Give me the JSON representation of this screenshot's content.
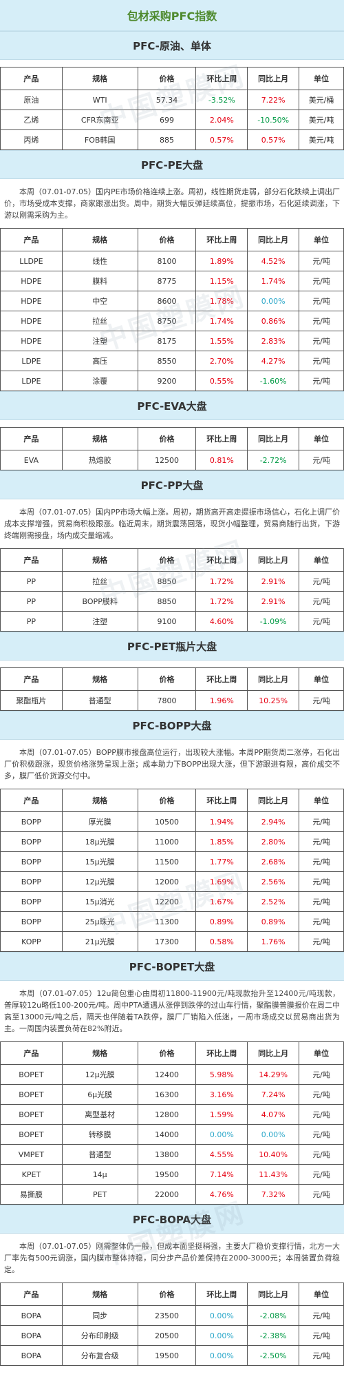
{
  "page": {
    "title": "包材采购PFC指数",
    "watermark": "中国塑膜网",
    "colors": {
      "header_bg": "#d6eef8",
      "title_green": "#4f8a2e",
      "up": "#e60012",
      "down": "#009a44",
      "flat": "#2aa7c9"
    },
    "headers": [
      "产品",
      "规格",
      "价格",
      "环比上周",
      "同比上月",
      "单位"
    ]
  },
  "sections": [
    {
      "title": "PFC-原油、单体",
      "paragraph": "",
      "rows": [
        {
          "product": "原油",
          "spec": "WTI",
          "price": "57.34",
          "wow": "-3.52%",
          "mom": "7.22%",
          "unit": "美元/桶"
        },
        {
          "product": "乙烯",
          "spec": "CFR东南亚",
          "price": "699",
          "wow": "2.04%",
          "mom": "-10.50%",
          "unit": "美元/吨"
        },
        {
          "product": "丙烯",
          "spec": "FOB韩国",
          "price": "885",
          "wow": "0.57%",
          "mom": "0.57%",
          "unit": "美元/吨"
        }
      ]
    },
    {
      "title": "PFC-PE大盘",
      "paragraph": "本周（07.01-07.05）国内PE市场价格连续上涨。周初，线性期货走弱，部分石化跌续上调出厂价，市场受成本支撑，商家跟涨出货。周中，期货大幅反弹延续高位，提振市场，石化延续调涨，下游以刚需采购为主。",
      "rows": [
        {
          "product": "LLDPE",
          "spec": "线性",
          "price": "8100",
          "wow": "1.89%",
          "mom": "4.52%",
          "unit": "元/吨"
        },
        {
          "product": "HDPE",
          "spec": "膜料",
          "price": "8775",
          "wow": "1.15%",
          "mom": "1.74%",
          "unit": "元/吨"
        },
        {
          "product": "HDPE",
          "spec": "中空",
          "price": "8600",
          "wow": "1.78%",
          "mom": "0.00%",
          "unit": "元/吨"
        },
        {
          "product": "HDPE",
          "spec": "拉丝",
          "price": "8750",
          "wow": "1.74%",
          "mom": "0.86%",
          "unit": "元/吨"
        },
        {
          "product": "HDPE",
          "spec": "注塑",
          "price": "8175",
          "wow": "1.55%",
          "mom": "2.83%",
          "unit": "元/吨"
        },
        {
          "product": "LDPE",
          "spec": "高压",
          "price": "8550",
          "wow": "2.70%",
          "mom": "4.27%",
          "unit": "元/吨"
        },
        {
          "product": "LDPE",
          "spec": "涂覆",
          "price": "9200",
          "wow": "0.55%",
          "mom": "-1.60%",
          "unit": "元/吨"
        }
      ]
    },
    {
      "title": "PFC-EVA大盘",
      "paragraph": "",
      "rows": [
        {
          "product": "EVA",
          "spec": "热熔胶",
          "price": "12500",
          "wow": "0.81%",
          "mom": "-2.72%",
          "unit": "元/吨"
        }
      ]
    },
    {
      "title": "PFC-PP大盘",
      "paragraph": "本周（07.01-07.05）国内PP市场大幅上涨。周初，期货高开高走提振市场信心，石化上调厂价成本支撑增强，贸易商积极跟涨。临近周末，期货震荡回落，现货小幅整理，贸易商随行出货，下游终端刚需接盘，场内成交量缩减。",
      "rows": [
        {
          "product": "PP",
          "spec": "拉丝",
          "price": "8850",
          "wow": "1.72%",
          "mom": "2.91%",
          "unit": "元/吨"
        },
        {
          "product": "PP",
          "spec": "BOPP膜料",
          "price": "8850",
          "wow": "1.72%",
          "mom": "2.91%",
          "unit": "元/吨"
        },
        {
          "product": "PP",
          "spec": "注塑",
          "price": "9100",
          "wow": "4.60%",
          "mom": "-1.09%",
          "unit": "元/吨"
        }
      ]
    },
    {
      "title": "PFC-PET瓶片大盘",
      "paragraph": "",
      "rows": [
        {
          "product": "聚酯瓶片",
          "spec": "普通型",
          "price": "7800",
          "wow": "1.96%",
          "mom": "10.25%",
          "unit": "元/吨"
        }
      ]
    },
    {
      "title": "PFC-BOPP大盘",
      "paragraph": "本周（07.01-07.05）BOPP膜市报盘高位运行，出现较大涨幅。本周PP期货周二涨停，石化出厂价积极跟涨，现货价格涨势呈现上涨；成本助力下BOPP出现大涨，但下游跟进有限，高价成交不多，膜厂低价货源交付中。",
      "rows": [
        {
          "product": "BOPP",
          "spec": "厚光膜",
          "price": "10500",
          "wow": "1.94%",
          "mom": "2.94%",
          "unit": "元/吨"
        },
        {
          "product": "BOPP",
          "spec": "18μ光膜",
          "price": "11000",
          "wow": "1.85%",
          "mom": "2.80%",
          "unit": "元/吨"
        },
        {
          "product": "BOPP",
          "spec": "15μ光膜",
          "price": "11500",
          "wow": "1.77%",
          "mom": "2.68%",
          "unit": "元/吨"
        },
        {
          "product": "BOPP",
          "spec": "12μ光膜",
          "price": "12000",
          "wow": "1.69%",
          "mom": "2.56%",
          "unit": "元/吨"
        },
        {
          "product": "BOPP",
          "spec": "15μ消光",
          "price": "12200",
          "wow": "1.67%",
          "mom": "2.52%",
          "unit": "元/吨"
        },
        {
          "product": "BOPP",
          "spec": "25μ珠光",
          "price": "11300",
          "wow": "0.89%",
          "mom": "0.89%",
          "unit": "元/吨"
        },
        {
          "product": "KOPP",
          "spec": "21μ光膜",
          "price": "17300",
          "wow": "0.58%",
          "mom": "1.76%",
          "unit": "元/吨"
        }
      ]
    },
    {
      "title": "PFC-BOPET大盘",
      "paragraph": "本周（07.01-07.05）12u简包重心由周初11800-11900元/吨现款抬升至12400元/吨现款，普厚较12u略低100-200元/吨。周中PTA遭遇从涨停到跌停的过山车行情，聚酯膜普膜报价在周二中高至13000元/吨之后，隔天也伴随着TA跌停，膜厂厂销陷入低迷，一周市场成交以贸易商出货为主。一周国内装置负荷在82%附近。",
      "rows": [
        {
          "product": "BOPET",
          "spec": "12μ光膜",
          "price": "12400",
          "wow": "5.98%",
          "mom": "14.29%",
          "unit": "元/吨"
        },
        {
          "product": "BOPET",
          "spec": "6μ光膜",
          "price": "16300",
          "wow": "3.16%",
          "mom": "7.24%",
          "unit": "元/吨"
        },
        {
          "product": "BOPET",
          "spec": "离型基材",
          "price": "12800",
          "wow": "1.59%",
          "mom": "4.07%",
          "unit": "元/吨"
        },
        {
          "product": "BOPET",
          "spec": "转移膜",
          "price": "14000",
          "wow": "0.00%",
          "mom": "0.00%",
          "unit": "元/吨"
        },
        {
          "product": "VMPET",
          "spec": "普通型",
          "price": "13800",
          "wow": "4.55%",
          "mom": "10.40%",
          "unit": "元/吨"
        },
        {
          "product": "KPET",
          "spec": "14μ",
          "price": "19500",
          "wow": "7.14%",
          "mom": "11.43%",
          "unit": "元/吨"
        },
        {
          "product": "易撕膜",
          "spec": "PET",
          "price": "22000",
          "wow": "4.76%",
          "mom": "7.32%",
          "unit": "元/吨"
        }
      ]
    },
    {
      "title": "PFC-BOPA大盘",
      "paragraph": "本周（07.01-07.05）刚需整体仍一般，但成本面坚挺稍强，主要大厂稳价支撑行情，北方一大厂率先有500元调涨，国内膜市整体持稳，同分步产品价差保持在2000-3000元；本周装置负荷稳定。",
      "rows": [
        {
          "product": "BOPA",
          "spec": "同步",
          "price": "23500",
          "wow": "0.00%",
          "mom": "-2.08%",
          "unit": "元/吨"
        },
        {
          "product": "BOPA",
          "spec": "分布印刷级",
          "price": "20500",
          "wow": "0.00%",
          "mom": "-2.38%",
          "unit": "元/吨"
        },
        {
          "product": "BOPA",
          "spec": "分布复合级",
          "price": "19500",
          "wow": "0.00%",
          "mom": "-2.50%",
          "unit": "元/吨"
        }
      ]
    }
  ]
}
